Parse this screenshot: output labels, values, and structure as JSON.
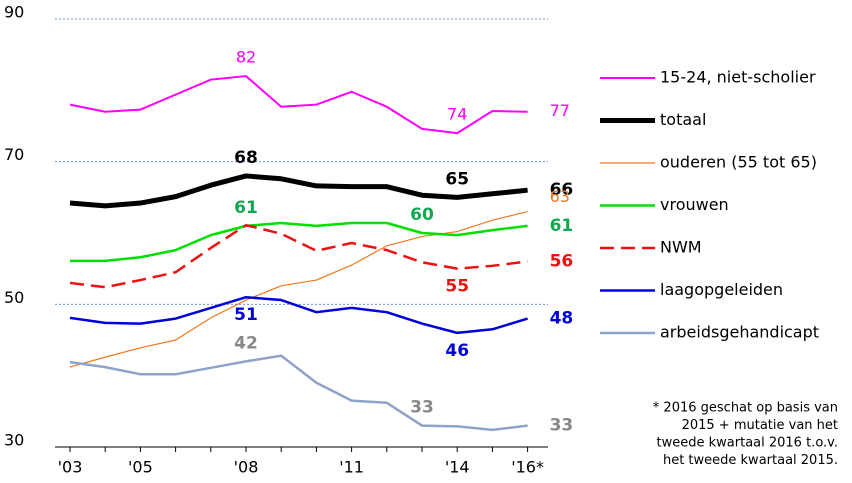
{
  "chart_data": {
    "type": "line",
    "x": [
      "'03",
      null,
      "'05",
      null,
      null,
      "'08",
      null,
      null,
      "'11",
      null,
      null,
      "'14",
      null,
      "'16*"
    ],
    "ylim": [
      30,
      90
    ],
    "yticks": [
      30,
      50,
      70,
      90
    ],
    "grid": true,
    "series": [
      {
        "name": "15-24, niet-scholier",
        "color": "#ff00ff",
        "width": 2,
        "dash": false,
        "values": [
          78,
          77,
          77.3,
          79.4,
          81.5,
          82,
          77.7,
          78,
          79.8,
          77.7,
          74.6,
          74,
          77.1,
          77
        ],
        "value_labels": [
          null,
          null,
          null,
          null,
          null,
          "82",
          null,
          null,
          null,
          null,
          null,
          "74",
          null,
          "77"
        ]
      },
      {
        "name": "totaal",
        "color": "#000000",
        "width": 5,
        "dash": false,
        "values": [
          64.2,
          63.8,
          64.2,
          65.1,
          66.7,
          68,
          67.6,
          66.6,
          66.5,
          66.5,
          65.3,
          65,
          65.5,
          66
        ],
        "value_labels": [
          null,
          null,
          null,
          null,
          null,
          "68",
          null,
          null,
          null,
          null,
          null,
          "65",
          null,
          "66"
        ]
      },
      {
        "name": "ouderen (55 tot 65)",
        "color": "#f07820",
        "width": 1.2,
        "dash": false,
        "values": [
          41.2,
          42.6,
          43.9,
          45,
          48.1,
          50.6,
          52.6,
          53.4,
          55.5,
          58.2,
          59.5,
          60.2,
          61.8,
          63
        ],
        "value_labels": [
          null,
          null,
          null,
          null,
          null,
          null,
          null,
          null,
          null,
          null,
          null,
          null,
          null,
          "63"
        ]
      },
      {
        "name": "vrouwen",
        "color": "#00e000",
        "width": 2.5,
        "dash": false,
        "values": [
          56.1,
          56.1,
          56.6,
          57.6,
          59.7,
          61,
          61.4,
          61,
          61.4,
          61.4,
          60,
          59.7,
          60.4,
          61
        ],
        "value_labels": [
          null,
          null,
          null,
          null,
          null,
          "61",
          null,
          null,
          null,
          null,
          "60",
          null,
          null,
          "61"
        ]
      },
      {
        "name": "NWM",
        "color": "#ee1111",
        "width": 2.5,
        "dash": true,
        "values": [
          53,
          52.4,
          53.4,
          54.5,
          57.9,
          61.1,
          59.9,
          57.5,
          58.6,
          57.6,
          55.9,
          55,
          55.4,
          56
        ],
        "value_labels": [
          null,
          null,
          null,
          null,
          null,
          null,
          null,
          null,
          null,
          null,
          null,
          "55",
          null,
          "56"
        ]
      },
      {
        "name": "laagopgeleiden",
        "color": "#0000dd",
        "width": 2.5,
        "dash": false,
        "values": [
          48.1,
          47.4,
          47.3,
          48,
          49.5,
          51,
          50.6,
          48.9,
          49.5,
          48.9,
          47.3,
          46,
          46.5,
          48
        ],
        "value_labels": [
          null,
          null,
          null,
          null,
          null,
          "51",
          null,
          null,
          null,
          null,
          null,
          "46",
          null,
          "48"
        ]
      },
      {
        "name": "arbeidsgehandicapt",
        "color": "#8fa3c8",
        "width": 2.5,
        "dash": false,
        "values": [
          41.9,
          41.2,
          40.2,
          40.2,
          41.1,
          42,
          42.8,
          39,
          36.5,
          36.2,
          33,
          32.9,
          32.4,
          33
        ],
        "value_labels": [
          null,
          null,
          null,
          null,
          null,
          "42",
          null,
          null,
          null,
          null,
          "33",
          null,
          null,
          "33"
        ]
      }
    ],
    "footnote": [
      "* 2016 geschat op basis van",
      "2015 + mutatie van het",
      "tweede kwartaal 2016 t.o.v.",
      "het tweede kwartaal 2015."
    ]
  }
}
